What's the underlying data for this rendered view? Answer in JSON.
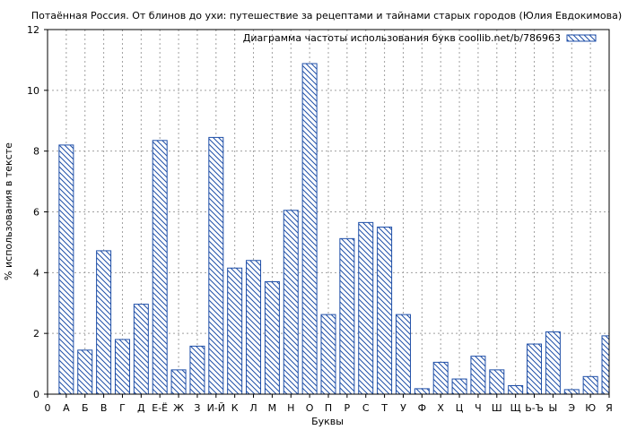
{
  "chart_data": {
    "type": "bar",
    "title": "Потаённая Россия. От блинов до ухи: путешествие за рецептами и тайнами старых городов (Юлия Евдокимова)",
    "xlabel": "Буквы",
    "ylabel": "% использования в тексте",
    "ylim": [
      0,
      12
    ],
    "yticks": [
      "0",
      "2",
      "4",
      "6",
      "8",
      "10",
      "12"
    ],
    "grid": true,
    "legend_position": "top-right",
    "legend_label": "Диаграмма частоты использования букв coollib.net/b/786963",
    "bar_color": "#1f4fa8",
    "categories": [
      "0",
      "А",
      "Б",
      "В",
      "Г",
      "Д",
      "Е-Ё",
      "Ж",
      "З",
      "И-Й",
      "К",
      "Л",
      "М",
      "Н",
      "О",
      "П",
      "Р",
      "С",
      "Т",
      "У",
      "Ф",
      "Х",
      "Ц",
      "Ч",
      "Ш",
      "Щ",
      "Ь-Ъ",
      "Ы",
      "Э",
      "Ю",
      "Я"
    ],
    "values": [
      0,
      8.2,
      1.45,
      4.72,
      1.8,
      2.96,
      8.35,
      0.8,
      1.58,
      8.45,
      4.15,
      4.4,
      3.7,
      6.05,
      10.88,
      2.62,
      5.12,
      5.65,
      5.5,
      2.62,
      0.18,
      1.05,
      0.5,
      1.25,
      0.8,
      0.28,
      1.65,
      2.05,
      0.15,
      0.58,
      1.92
    ]
  }
}
